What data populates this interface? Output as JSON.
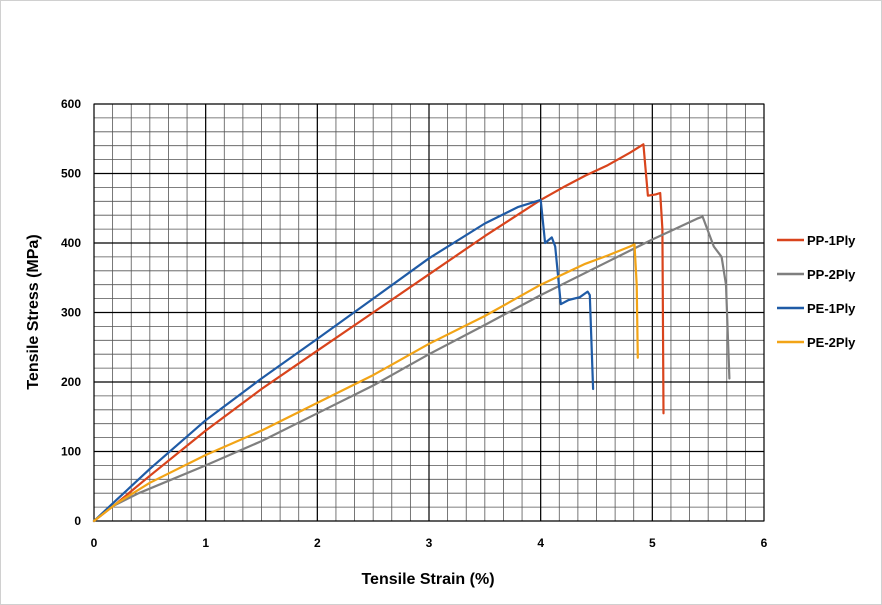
{
  "chart_data": {
    "type": "line",
    "title": "",
    "xlabel": "Tensile Strain (%)",
    "ylabel": "Tensile Stress (MPa)",
    "xlim": [
      0,
      6
    ],
    "ylim": [
      0,
      600
    ],
    "x_ticks": [
      0,
      1,
      2,
      3,
      4,
      5,
      6
    ],
    "y_ticks": [
      0,
      100,
      200,
      300,
      400,
      500,
      600
    ],
    "grid": true,
    "legend_position": "right",
    "series": [
      {
        "name": "PP-1Ply",
        "color": "#D9441C",
        "points": [
          [
            0,
            0
          ],
          [
            0.2,
            25
          ],
          [
            0.5,
            65
          ],
          [
            1.0,
            130
          ],
          [
            1.5,
            190
          ],
          [
            2.0,
            245
          ],
          [
            2.5,
            300
          ],
          [
            3.0,
            355
          ],
          [
            3.5,
            410
          ],
          [
            4.0,
            462
          ],
          [
            4.2,
            480
          ],
          [
            4.4,
            497
          ],
          [
            4.6,
            512
          ],
          [
            4.8,
            530
          ],
          [
            4.92,
            542
          ],
          [
            4.96,
            468
          ],
          [
            5.03,
            470
          ],
          [
            5.07,
            472
          ],
          [
            5.09,
            420
          ],
          [
            5.1,
            155
          ]
        ]
      },
      {
        "name": "PP-2Ply",
        "color": "#7F7F7F",
        "points": [
          [
            0,
            0
          ],
          [
            0.15,
            20
          ],
          [
            0.4,
            40
          ],
          [
            1.0,
            80
          ],
          [
            1.5,
            115
          ],
          [
            2.0,
            155
          ],
          [
            2.5,
            195
          ],
          [
            3.0,
            240
          ],
          [
            3.5,
            282
          ],
          [
            4.0,
            325
          ],
          [
            4.5,
            365
          ],
          [
            5.0,
            405
          ],
          [
            5.2,
            420
          ],
          [
            5.4,
            435
          ],
          [
            5.45,
            438
          ],
          [
            5.55,
            395
          ],
          [
            5.62,
            380
          ],
          [
            5.66,
            340
          ],
          [
            5.69,
            205
          ]
        ]
      },
      {
        "name": "PE-1Ply",
        "color": "#1F5BA6",
        "points": [
          [
            0,
            0
          ],
          [
            0.2,
            30
          ],
          [
            0.5,
            75
          ],
          [
            1.0,
            145
          ],
          [
            1.5,
            205
          ],
          [
            2.0,
            262
          ],
          [
            2.5,
            320
          ],
          [
            3.0,
            378
          ],
          [
            3.5,
            428
          ],
          [
            3.8,
            452
          ],
          [
            4.0,
            462
          ],
          [
            4.04,
            400
          ],
          [
            4.1,
            408
          ],
          [
            4.13,
            395
          ],
          [
            4.18,
            312
          ],
          [
            4.25,
            318
          ],
          [
            4.35,
            322
          ],
          [
            4.42,
            330
          ],
          [
            4.44,
            325
          ],
          [
            4.47,
            190
          ]
        ]
      },
      {
        "name": "PE-2Ply",
        "color": "#F2A416",
        "points": [
          [
            0,
            0
          ],
          [
            0.2,
            25
          ],
          [
            0.5,
            55
          ],
          [
            1.0,
            95
          ],
          [
            1.5,
            130
          ],
          [
            2.0,
            170
          ],
          [
            2.5,
            210
          ],
          [
            3.0,
            255
          ],
          [
            3.5,
            295
          ],
          [
            4.0,
            340
          ],
          [
            4.4,
            370
          ],
          [
            4.6,
            382
          ],
          [
            4.8,
            395
          ],
          [
            4.84,
            398
          ],
          [
            4.86,
            340
          ],
          [
            4.87,
            235
          ]
        ]
      }
    ]
  }
}
